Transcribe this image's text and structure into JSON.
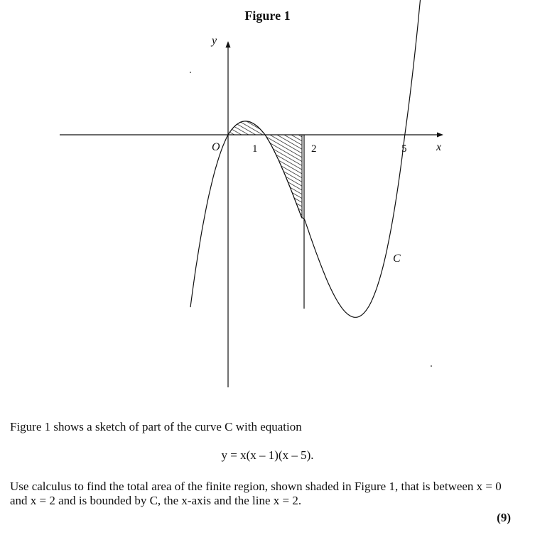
{
  "figure": {
    "title": "Figure 1",
    "labels": {
      "y_axis": "y",
      "x_axis": "x",
      "origin": "O",
      "tick_1": "1",
      "tick_2": "2",
      "tick_5": "5",
      "curve": "C"
    }
  },
  "text": {
    "intro": "Figure 1 shows a sketch of part of the curve C with equation",
    "equation": "y = x(x – 1)(x – 5).",
    "question": "Use calculus to find the total area of the finite region, shown shaded in Figure 1, that is between x = 0 and x = 2 and is bounded by C, the x-axis and the line x = 2.",
    "marks": "(9)"
  }
}
